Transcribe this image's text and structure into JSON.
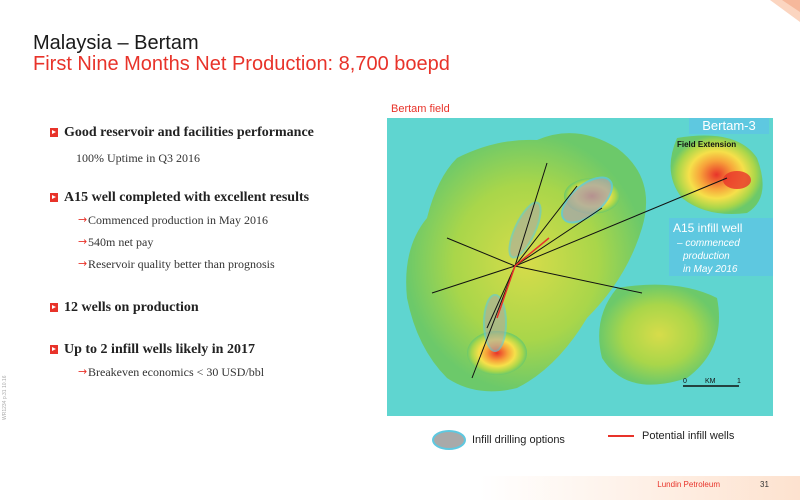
{
  "header": {
    "title": "Malaysia – Bertam",
    "subtitle": "First Nine Months Net Production: 8,700 boepd"
  },
  "bullets": [
    {
      "heading": "Good reservoir and facilities performance",
      "plain": "100% Uptime in Q3 2016",
      "subs": []
    },
    {
      "heading": "A15 well completed with excellent results",
      "subs": [
        "Commenced production in May 2016",
        "540m net pay",
        "Reservoir quality better than prognosis"
      ]
    },
    {
      "heading": "12 wells on production",
      "subs": []
    },
    {
      "heading": "Up to 2 infill wells likely in 2017",
      "subs": [
        "Breakeven economics < 30 USD/bbl"
      ]
    }
  ],
  "map": {
    "label": "Bertam field",
    "callout_bertam3": "Bertam-3",
    "callout_field_extension": "Field Extension",
    "callout_a15_title": "A15 infill well",
    "callout_a15_line1": "– commenced",
    "callout_a15_line2": "production",
    "callout_a15_line3": "in May 2016",
    "scale_zero": "0",
    "scale_unit": "KM",
    "scale_one": "1"
  },
  "legend": {
    "infill_options": "Infill drilling options",
    "potential_wells": "Potential infill wells"
  },
  "footer": {
    "company": "Lundin Petroleum",
    "page": "31",
    "doc_code": "WR1234 p.31 10.16"
  },
  "colors": {
    "accent": "#e8332a",
    "callout": "#5ec8e0"
  }
}
